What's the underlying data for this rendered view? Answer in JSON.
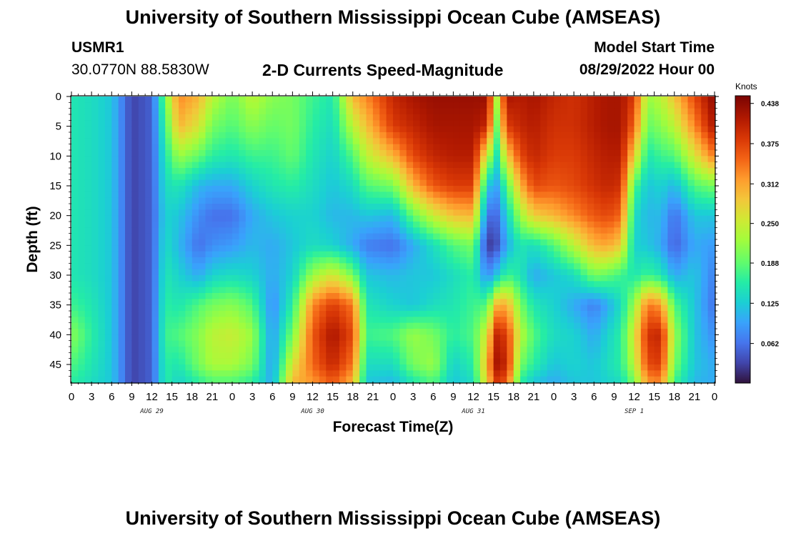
{
  "page": {
    "title_top": "University of Southern Mississippi Ocean Cube (AMSEAS)",
    "title_bottom": "University of Southern Mississippi Ocean Cube (AMSEAS)",
    "station_id": "USMR1",
    "coordinates": "30.0770N  88.5830W",
    "subtitle": "2-D Currents Speed-Magnitude",
    "model_start_label": "Model Start Time",
    "model_start_value": "08/29/2022 Hour 00"
  },
  "chart_data": {
    "type": "heatmap",
    "title": "2-D Currents Speed-Magnitude",
    "xlabel": "Forecast Time(Z)",
    "ylabel": "Depth (ft)",
    "xlim": [
      0,
      96
    ],
    "ylim": [
      48,
      0
    ],
    "x_tick_values": [
      0,
      3,
      6,
      9,
      12,
      15,
      18,
      21,
      24,
      27,
      30,
      33,
      36,
      39,
      42,
      45,
      48,
      51,
      54,
      57,
      60,
      63,
      66,
      69,
      72,
      75,
      78,
      81,
      84,
      87,
      90,
      93,
      96
    ],
    "x_tick_labels": [
      "0",
      "3",
      "6",
      "9",
      "12",
      "15",
      "18",
      "21",
      "0",
      "3",
      "6",
      "9",
      "12",
      "15",
      "18",
      "21",
      "0",
      "3",
      "6",
      "9",
      "12",
      "15",
      "18",
      "21",
      "0",
      "3",
      "6",
      "9",
      "12",
      "15",
      "18",
      "21",
      "0"
    ],
    "y_tick_values": [
      0,
      5,
      10,
      15,
      20,
      25,
      30,
      35,
      40,
      45
    ],
    "y_tick_labels": [
      "0",
      "5",
      "10",
      "15",
      "20",
      "25",
      "30",
      "35",
      "40",
      "45"
    ],
    "date_labels": [
      {
        "hour": 12,
        "label": "AUG 29"
      },
      {
        "hour": 36,
        "label": "AUG 30"
      },
      {
        "hour": 60,
        "label": "AUG 31"
      },
      {
        "hour": 84,
        "label": "SEP 1"
      }
    ],
    "colorbar": {
      "units": "Knots",
      "min": 0.0,
      "max": 0.45,
      "tick_values": [
        0.438,
        0.375,
        0.312,
        0.25,
        0.188,
        0.125,
        0.062
      ],
      "tick_labels": [
        "0.438",
        "0.375",
        "0.312",
        "0.250",
        "0.188",
        "0.125",
        "0.062"
      ]
    },
    "profile_hours": [
      0,
      3,
      6,
      9,
      12,
      14,
      16,
      19,
      21,
      24,
      27,
      30,
      33,
      36,
      39,
      42,
      44,
      48,
      51,
      54,
      57,
      60,
      62,
      63.5,
      65,
      67,
      69,
      72,
      75,
      78,
      80,
      82,
      84,
      86,
      88,
      90,
      93,
      96
    ],
    "profile_depths": [
      0,
      5,
      10,
      15,
      20,
      25,
      30,
      35,
      40,
      45,
      48
    ],
    "speed_knots": [
      [
        0.15,
        0.15,
        0.15,
        0.15,
        0.15,
        0.15,
        0.15,
        0.17,
        0.21,
        0.18,
        0.16
      ],
      [
        0.14,
        0.14,
        0.14,
        0.14,
        0.14,
        0.14,
        0.14,
        0.15,
        0.16,
        0.15,
        0.14
      ],
      [
        0.12,
        0.12,
        0.12,
        0.12,
        0.12,
        0.12,
        0.12,
        0.12,
        0.12,
        0.12,
        0.12
      ],
      [
        0.03,
        0.03,
        0.03,
        0.03,
        0.03,
        0.03,
        0.03,
        0.03,
        0.03,
        0.03,
        0.03
      ],
      [
        0.05,
        0.05,
        0.05,
        0.05,
        0.05,
        0.05,
        0.05,
        0.05,
        0.05,
        0.05,
        0.05
      ],
      [
        0.2,
        0.17,
        0.15,
        0.14,
        0.13,
        0.14,
        0.15,
        0.16,
        0.17,
        0.16,
        0.16
      ],
      [
        0.33,
        0.3,
        0.22,
        0.15,
        0.12,
        0.11,
        0.13,
        0.15,
        0.18,
        0.15,
        0.13
      ],
      [
        0.3,
        0.26,
        0.19,
        0.11,
        0.08,
        0.06,
        0.1,
        0.18,
        0.21,
        0.2,
        0.16
      ],
      [
        0.24,
        0.2,
        0.16,
        0.1,
        0.06,
        0.08,
        0.13,
        0.2,
        0.24,
        0.23,
        0.18
      ],
      [
        0.2,
        0.18,
        0.15,
        0.1,
        0.06,
        0.09,
        0.14,
        0.21,
        0.25,
        0.23,
        0.18
      ],
      [
        0.24,
        0.21,
        0.17,
        0.13,
        0.1,
        0.11,
        0.13,
        0.18,
        0.22,
        0.2,
        0.16
      ],
      [
        0.21,
        0.19,
        0.17,
        0.15,
        0.12,
        0.1,
        0.1,
        0.08,
        0.09,
        0.09,
        0.1
      ],
      [
        0.2,
        0.2,
        0.19,
        0.16,
        0.13,
        0.12,
        0.13,
        0.16,
        0.2,
        0.26,
        0.3
      ],
      [
        0.17,
        0.16,
        0.15,
        0.14,
        0.13,
        0.14,
        0.22,
        0.33,
        0.36,
        0.35,
        0.32
      ],
      [
        0.15,
        0.14,
        0.13,
        0.12,
        0.11,
        0.13,
        0.26,
        0.38,
        0.42,
        0.4,
        0.36
      ],
      [
        0.3,
        0.24,
        0.18,
        0.14,
        0.11,
        0.1,
        0.2,
        0.34,
        0.37,
        0.34,
        0.3
      ],
      [
        0.33,
        0.29,
        0.24,
        0.18,
        0.12,
        0.07,
        0.12,
        0.15,
        0.17,
        0.14,
        0.12
      ],
      [
        0.4,
        0.38,
        0.3,
        0.2,
        0.11,
        0.06,
        0.11,
        0.13,
        0.18,
        0.14,
        0.11
      ],
      [
        0.42,
        0.4,
        0.37,
        0.3,
        0.19,
        0.1,
        0.12,
        0.12,
        0.22,
        0.2,
        0.15
      ],
      [
        0.43,
        0.42,
        0.4,
        0.36,
        0.25,
        0.14,
        0.12,
        0.14,
        0.2,
        0.22,
        0.18
      ],
      [
        0.43,
        0.42,
        0.41,
        0.38,
        0.29,
        0.18,
        0.14,
        0.15,
        0.16,
        0.13,
        0.12
      ],
      [
        0.43,
        0.42,
        0.41,
        0.38,
        0.3,
        0.2,
        0.16,
        0.17,
        0.18,
        0.16,
        0.14
      ],
      [
        0.43,
        0.4,
        0.25,
        0.12,
        0.06,
        0.02,
        0.08,
        0.18,
        0.26,
        0.3,
        0.28
      ],
      [
        0.24,
        0.2,
        0.15,
        0.1,
        0.06,
        0.04,
        0.12,
        0.3,
        0.4,
        0.42,
        0.38
      ],
      [
        0.42,
        0.38,
        0.28,
        0.18,
        0.13,
        0.1,
        0.17,
        0.31,
        0.38,
        0.4,
        0.36
      ],
      [
        0.41,
        0.4,
        0.37,
        0.3,
        0.22,
        0.15,
        0.15,
        0.2,
        0.24,
        0.2,
        0.16
      ],
      [
        0.42,
        0.41,
        0.4,
        0.37,
        0.28,
        0.14,
        0.1,
        0.15,
        0.18,
        0.16,
        0.12
      ],
      [
        0.4,
        0.39,
        0.38,
        0.36,
        0.3,
        0.18,
        0.12,
        0.13,
        0.14,
        0.12,
        0.1
      ],
      [
        0.39,
        0.39,
        0.38,
        0.37,
        0.33,
        0.24,
        0.14,
        0.1,
        0.13,
        0.13,
        0.12
      ],
      [
        0.41,
        0.41,
        0.4,
        0.39,
        0.36,
        0.3,
        0.2,
        0.07,
        0.1,
        0.12,
        0.12
      ],
      [
        0.42,
        0.42,
        0.41,
        0.4,
        0.37,
        0.31,
        0.19,
        0.1,
        0.13,
        0.14,
        0.13
      ],
      [
        0.42,
        0.42,
        0.41,
        0.39,
        0.35,
        0.28,
        0.17,
        0.14,
        0.16,
        0.16,
        0.14
      ],
      [
        0.38,
        0.35,
        0.28,
        0.18,
        0.14,
        0.13,
        0.15,
        0.22,
        0.26,
        0.24,
        0.2
      ],
      [
        0.22,
        0.19,
        0.15,
        0.12,
        0.11,
        0.12,
        0.17,
        0.34,
        0.39,
        0.37,
        0.32
      ],
      [
        0.24,
        0.21,
        0.17,
        0.13,
        0.11,
        0.1,
        0.15,
        0.32,
        0.4,
        0.38,
        0.33
      ],
      [
        0.29,
        0.24,
        0.18,
        0.11,
        0.06,
        0.05,
        0.1,
        0.18,
        0.22,
        0.2,
        0.17
      ],
      [
        0.37,
        0.33,
        0.26,
        0.18,
        0.12,
        0.1,
        0.12,
        0.12,
        0.12,
        0.12,
        0.11
      ],
      [
        0.44,
        0.42,
        0.34,
        0.2,
        0.12,
        0.09,
        0.07,
        0.06,
        0.08,
        0.1,
        0.1
      ]
    ]
  }
}
